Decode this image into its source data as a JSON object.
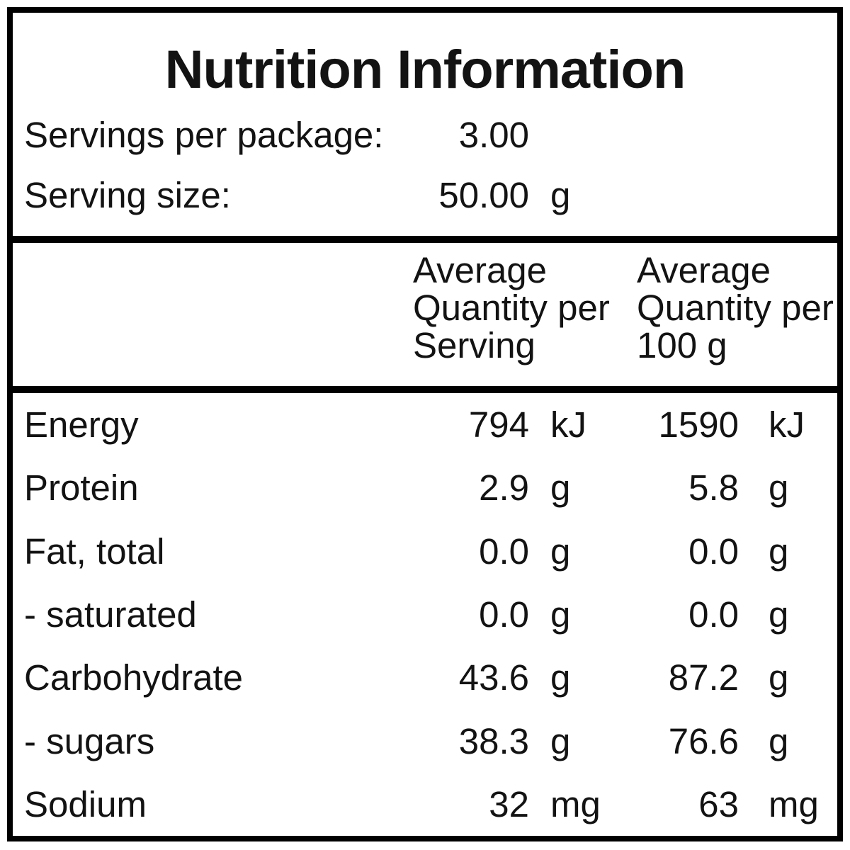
{
  "title": "Nutrition Information",
  "servings": {
    "per_package": {
      "label": "Servings per package:",
      "value": "3.00",
      "unit": ""
    },
    "serving_size": {
      "label": "Serving size:",
      "value": "50.00",
      "unit": "g"
    }
  },
  "table": {
    "col_headers": {
      "per_serving": "Average\nQuantity per\nServing",
      "per_100g": "Average\nQuantity per\n100 g"
    },
    "rows": [
      {
        "name": "Energy",
        "per_serving": "794",
        "per_serving_unit": "kJ",
        "per_100g": "1590",
        "per_100g_unit": "kJ"
      },
      {
        "name": "Protein",
        "per_serving": "2.9",
        "per_serving_unit": "g",
        "per_100g": "5.8",
        "per_100g_unit": "g"
      },
      {
        "name": "Fat, total",
        "per_serving": "0.0",
        "per_serving_unit": "g",
        "per_100g": "0.0",
        "per_100g_unit": "g"
      },
      {
        "name": "- saturated",
        "per_serving": "0.0",
        "per_serving_unit": "g",
        "per_100g": "0.0",
        "per_100g_unit": "g"
      },
      {
        "name": "Carbohydrate",
        "per_serving": "43.6",
        "per_serving_unit": "g",
        "per_100g": "87.2",
        "per_100g_unit": "g"
      },
      {
        "name": "- sugars",
        "per_serving": "38.3",
        "per_serving_unit": "g",
        "per_100g": "76.6",
        "per_100g_unit": "g"
      },
      {
        "name": "Sodium",
        "per_serving": "32",
        "per_serving_unit": "mg",
        "per_100g": "63",
        "per_100g_unit": "mg"
      }
    ]
  },
  "colors": {
    "border": "#000000",
    "text": "#131313",
    "background": "#ffffff"
  }
}
